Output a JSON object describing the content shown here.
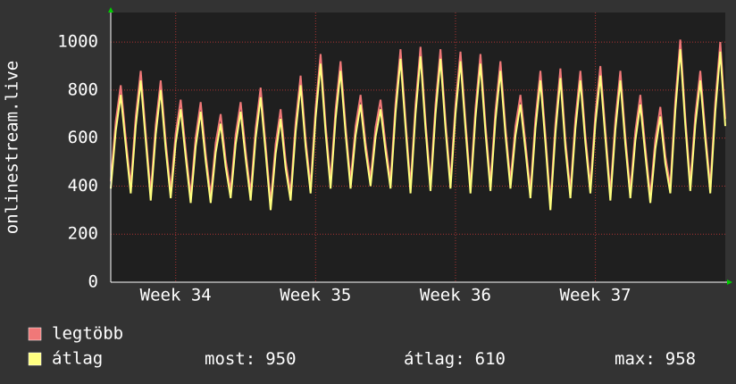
{
  "chart_data": {
    "type": "line",
    "y_label": "onlinestream.live",
    "x": [
      0,
      0.25,
      0.5,
      0.75,
      1,
      1.25,
      1.5,
      1.75,
      2,
      2.25,
      2.5,
      2.75,
      3,
      3.25,
      3.5,
      3.75,
      4,
      4.25,
      4.5,
      4.75,
      5,
      5.25,
      5.5,
      5.75,
      6,
      6.25,
      6.5,
      6.75,
      7,
      7.25,
      7.5,
      7.75,
      8,
      8.25,
      8.5,
      8.75,
      9,
      9.25,
      9.5,
      9.75,
      10,
      10.25,
      10.5,
      10.75,
      11,
      11.25,
      11.5,
      11.75,
      12,
      12.25,
      12.5,
      12.75,
      13,
      13.25,
      13.5,
      13.75,
      14,
      14.25,
      14.5,
      14.75,
      15,
      15.25,
      15.5,
      15.75,
      16,
      16.25,
      16.5,
      16.75,
      17,
      17.25,
      17.5,
      17.75,
      18,
      18.25,
      18.5,
      18.75,
      19,
      19.25,
      19.5,
      19.75,
      20,
      20.25,
      20.5,
      20.75,
      21,
      21.25,
      21.5,
      21.75,
      22,
      22.25,
      22.5,
      22.75,
      23,
      23.25,
      23.5,
      23.75,
      24,
      24.25,
      24.5,
      24.75,
      25,
      25.25,
      25.5,
      25.75,
      26,
      26.25,
      26.5,
      26.75,
      27,
      27.25,
      27.5,
      27.75,
      28,
      28.25,
      28.5,
      28.75,
      29,
      29.25,
      29.5,
      29.75,
      30,
      30.25,
      30.5,
      30.75
    ],
    "series": [
      {
        "name": "legtöbb",
        "color": "#f07878",
        "values": [
          420,
          670,
          820,
          600,
          400,
          690,
          880,
          620,
          370,
          655,
          840,
          585,
          380,
          620,
          760,
          550,
          360,
          605,
          750,
          535,
          360,
          580,
          700,
          510,
          380,
          615,
          750,
          545,
          370,
          640,
          810,
          570,
          330,
          575,
          720,
          505,
          370,
          665,
          860,
          595,
          400,
          725,
          950,
          655,
          420,
          720,
          920,
          650,
          420,
          650,
          780,
          580,
          430,
          645,
          760,
          575,
          420,
          745,
          970,
          675,
          400,
          740,
          980,
          670,
          410,
          740,
          970,
          670,
          420,
          740,
          960,
          670,
          400,
          725,
          950,
          655,
          410,
          715,
          920,
          645,
          420,
          650,
          780,
          580,
          380,
          680,
          880,
          610,
          330,
          660,
          890,
          590,
          380,
          680,
          880,
          610,
          400,
          700,
          900,
          630,
          370,
          675,
          880,
          605,
          380,
          630,
          780,
          560,
          360,
          595,
          730,
          525,
          400,
          755,
          1010,
          685,
          410,
          695,
          880,
          625,
          400,
          750,
          1000,
          680
        ]
      },
      {
        "name": "átlag",
        "color": "#ffff80",
        "values": [
          390,
          630,
          780,
          570,
          370,
          650,
          840,
          590,
          340,
          615,
          800,
          555,
          350,
          580,
          720,
          520,
          330,
          565,
          710,
          505,
          330,
          540,
          660,
          480,
          350,
          575,
          710,
          515,
          340,
          600,
          770,
          540,
          300,
          535,
          680,
          475,
          340,
          625,
          820,
          565,
          370,
          685,
          910,
          625,
          390,
          680,
          880,
          620,
          390,
          610,
          740,
          550,
          400,
          605,
          720,
          545,
          390,
          705,
          930,
          645,
          370,
          700,
          940,
          640,
          380,
          700,
          930,
          640,
          390,
          700,
          920,
          640,
          370,
          685,
          910,
          625,
          380,
          675,
          880,
          615,
          390,
          610,
          740,
          550,
          350,
          640,
          840,
          580,
          300,
          620,
          850,
          560,
          350,
          640,
          840,
          580,
          370,
          660,
          860,
          600,
          340,
          635,
          840,
          575,
          350,
          590,
          740,
          530,
          330,
          555,
          690,
          495,
          370,
          715,
          970,
          655,
          380,
          655,
          840,
          595,
          370,
          710,
          960,
          650
        ]
      }
    ],
    "xlim": [
      0,
      30.75
    ],
    "xticks": [
      {
        "value": 3.25,
        "label": "Week 34"
      },
      {
        "value": 10.25,
        "label": "Week 35"
      },
      {
        "value": 17.25,
        "label": "Week 36"
      },
      {
        "value": 24.25,
        "label": "Week 37"
      }
    ],
    "ylim": [
      0,
      1123
    ],
    "yticks": [
      0,
      200,
      400,
      600,
      800,
      1000
    ],
    "grid": true,
    "stats": [
      {
        "label": "most:",
        "value": 950
      },
      {
        "label": "átlag:",
        "value": 610
      },
      {
        "label": "max:",
        "value": 958
      }
    ]
  }
}
